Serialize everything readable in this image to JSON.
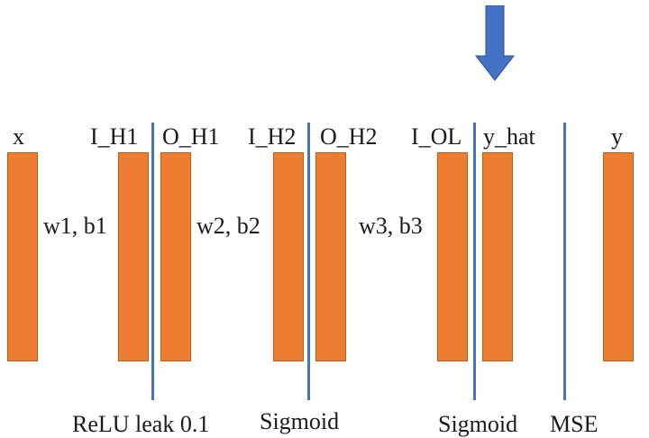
{
  "layers": {
    "x": "x",
    "i_h1": "I_H1",
    "o_h1": "O_H1",
    "i_h2": "I_H2",
    "o_h2": "O_H2",
    "i_ol": "I_OL",
    "y_hat": "y_hat",
    "y": "y"
  },
  "weights": {
    "w1b1": "w1, b1",
    "w2b2": "w2, b2",
    "w3b3": "w3, b3"
  },
  "functions": {
    "act1": "ReLU leak 0.1",
    "act2": "Sigmoid",
    "act3": "Sigmoid",
    "loss": "MSE"
  },
  "colors": {
    "bar_fill": "#ed7d31",
    "divider": "#4472c4",
    "arrow": "#4472c4"
  },
  "icons": {
    "pointer": "down-arrow-icon"
  }
}
